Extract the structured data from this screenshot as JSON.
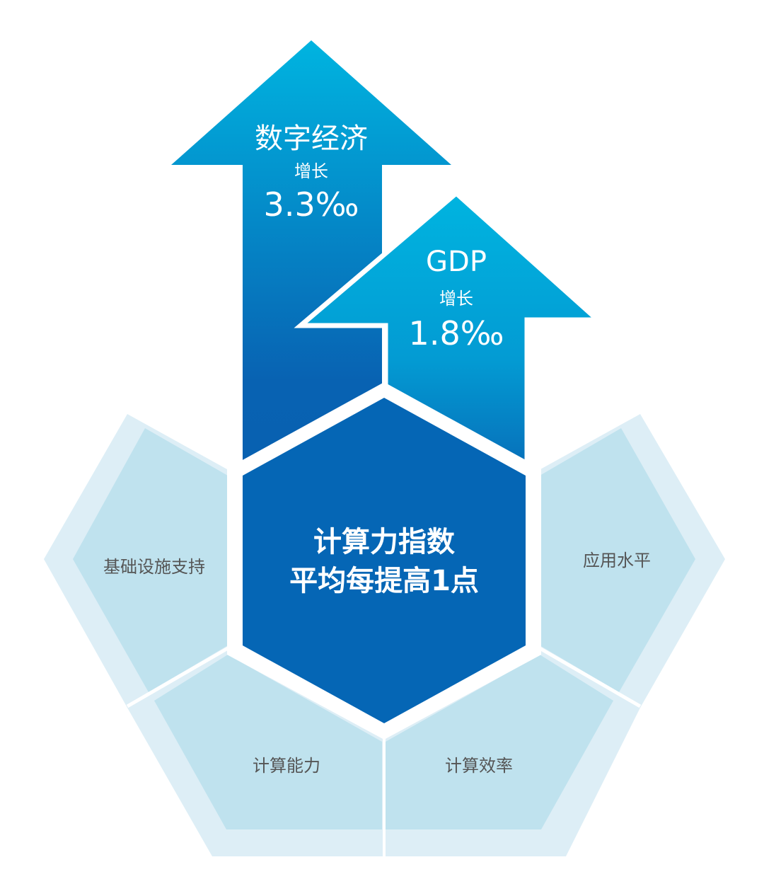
{
  "arrows": [
    {
      "title": "数字经济",
      "subtitle": "增长",
      "value": "3.3‰"
    },
    {
      "title": "GDP",
      "subtitle": "增长",
      "value": "1.8‰"
    }
  ],
  "center": {
    "line1": "计算力指数",
    "line2": "平均每提高1点"
  },
  "segments": {
    "left": "基础设施支持",
    "right": "应用水平",
    "bottom_left": "计算能力",
    "bottom_right": "计算效率"
  },
  "colors": {
    "arrow_top": "#00b2dd",
    "arrow_bottom": "#0860b0",
    "center_hex": "#0566b5",
    "segment_inner": "#bfe2ee",
    "segment_outer": "#ddeef6",
    "label_gray": "#555555"
  }
}
